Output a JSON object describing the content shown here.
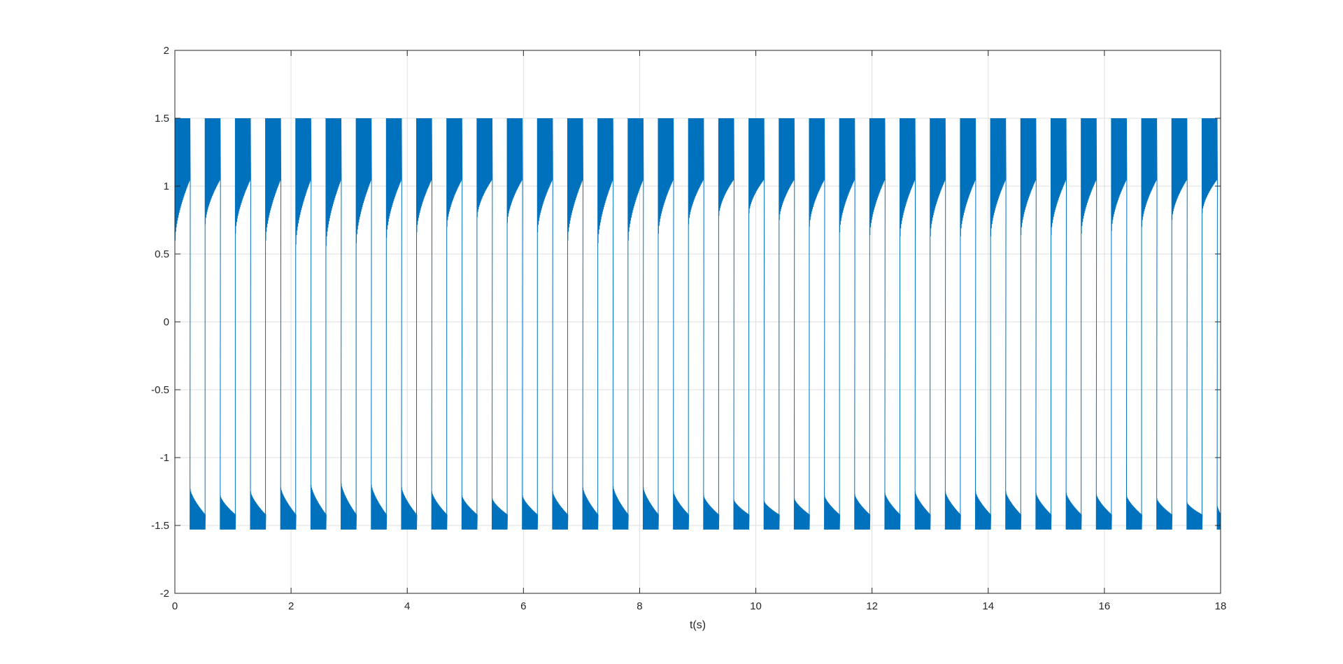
{
  "chart_data": {
    "type": "line",
    "title": "",
    "xlabel": "t(s)",
    "ylabel": "",
    "xlim": [
      0,
      18
    ],
    "ylim": [
      -2,
      2
    ],
    "xticks": [
      0,
      2,
      4,
      6,
      8,
      10,
      12,
      14,
      16,
      18
    ],
    "yticks": [
      -2,
      -1.5,
      -1,
      -0.5,
      0,
      0.5,
      1,
      1.5,
      2
    ],
    "xtick_labels": [
      "0",
      "2",
      "4",
      "6",
      "8",
      "10",
      "12",
      "14",
      "16",
      "18"
    ],
    "ytick_labels": [
      "-2",
      "-1.5",
      "-1",
      "-0.5",
      "0",
      "0.5",
      "1",
      "1.5",
      "2"
    ],
    "grid": true,
    "line_color": "#0072BD",
    "series": [
      {
        "name": "",
        "description_values": {
          "switching_period": 0.52,
          "duty_high": 0.5,
          "high_peak": 1.5,
          "high_trough_start": [
            0.6,
            0.72,
            0.65,
            0.6,
            0.57,
            0.56,
            0.58,
            0.62,
            0.66,
            0.7,
            0.77,
            0.73,
            0.66,
            0.6,
            0.58,
            0.6,
            0.65,
            0.72,
            0.78,
            0.8,
            0.75,
            0.7,
            0.66,
            0.64,
            0.63,
            0.63,
            0.63,
            0.63,
            0.64,
            0.64,
            0.65,
            0.67,
            0.7,
            0.75,
            0.8
          ],
          "low_peak": -1.53,
          "low_envelope_top": [
            -1.23,
            -1.28,
            -1.25,
            -1.22,
            -1.2,
            -1.19,
            -1.2,
            -1.22,
            -1.25,
            -1.28,
            -1.3,
            -1.28,
            -1.25,
            -1.22,
            -1.21,
            -1.22,
            -1.25,
            -1.28,
            -1.31,
            -1.32,
            -1.3,
            -1.28,
            -1.27,
            -1.26,
            -1.25,
            -1.25,
            -1.25,
            -1.25,
            -1.26,
            -1.26,
            -1.27,
            -1.28,
            -1.3,
            -1.33,
            -1.35
          ]
        }
      }
    ]
  }
}
